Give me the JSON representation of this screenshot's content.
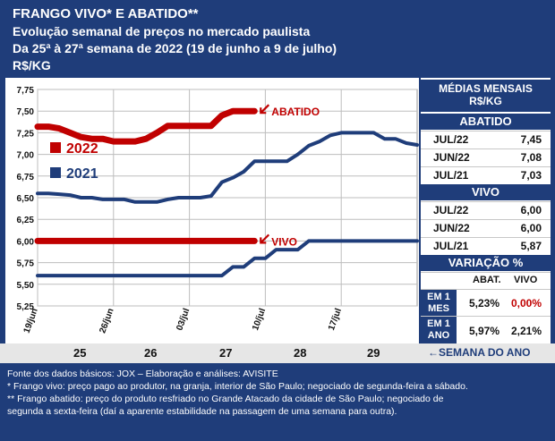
{
  "header": {
    "title": "FRANGO VIVO* E ABATIDO**",
    "line2": "Evolução semanal de preços no mercado paulista",
    "line3": "Da 25ª à 27ª semana de 2022 (19 de junho a 9 de julho)",
    "line4": "R$/KG"
  },
  "chart_data": {
    "type": "line",
    "title": "",
    "xlabel": "",
    "ylabel": "R$/KG",
    "ylim": [
      5.25,
      7.75
    ],
    "yticks": [
      "7,75",
      "7,50",
      "7,25",
      "7,00",
      "6,75",
      "6,50",
      "6,25",
      "6,00",
      "5,75",
      "5,50",
      "5,25"
    ],
    "x_tick_labels": [
      "19/jun",
      "26/jun",
      "03/jul",
      "10/jul",
      "17/jul"
    ],
    "x_tick_days": [
      0,
      7,
      14,
      21,
      28
    ],
    "x_range_days": [
      0,
      35
    ],
    "grid": true,
    "series": [
      {
        "name": "2022",
        "product": "ABATIDO",
        "color": "#c00000",
        "x": [
          0,
          1,
          2,
          3,
          4,
          5,
          6,
          7,
          8,
          9,
          10,
          11,
          12,
          13,
          14,
          15,
          16,
          17,
          18,
          19,
          20
        ],
        "values": [
          7.32,
          7.32,
          7.3,
          7.25,
          7.2,
          7.18,
          7.18,
          7.15,
          7.15,
          7.15,
          7.18,
          7.25,
          7.33,
          7.33,
          7.33,
          7.33,
          7.33,
          7.45,
          7.5,
          7.5,
          7.5
        ]
      },
      {
        "name": "2021",
        "product": "ABATIDO",
        "color": "#1f3d7a",
        "x": [
          0,
          1,
          2,
          3,
          4,
          5,
          6,
          7,
          8,
          9,
          10,
          11,
          12,
          13,
          14,
          15,
          16,
          17,
          18,
          19,
          20,
          21,
          22,
          23,
          24,
          25,
          26,
          27,
          28,
          29,
          30,
          31,
          32,
          33,
          34,
          35
        ],
        "values": [
          6.55,
          6.55,
          6.54,
          6.53,
          6.5,
          6.5,
          6.48,
          6.48,
          6.48,
          6.45,
          6.45,
          6.45,
          6.48,
          6.5,
          6.5,
          6.5,
          6.52,
          6.68,
          6.73,
          6.8,
          6.92,
          6.92,
          6.92,
          6.92,
          7.0,
          7.1,
          7.15,
          7.22,
          7.25,
          7.25,
          7.25,
          7.25,
          7.18,
          7.18,
          7.13,
          7.11
        ]
      },
      {
        "name": "2022",
        "product": "VIVO",
        "color": "#c00000",
        "x": [
          0,
          20
        ],
        "values": [
          6.0,
          6.0
        ]
      },
      {
        "name": "2021",
        "product": "VIVO",
        "color": "#1f3d7a",
        "x": [
          0,
          1,
          2,
          3,
          4,
          5,
          6,
          7,
          8,
          9,
          10,
          11,
          12,
          13,
          14,
          15,
          16,
          17,
          18,
          19,
          20,
          21,
          22,
          23,
          24,
          25,
          26,
          27,
          28,
          29,
          30,
          31,
          32,
          33,
          34,
          35
        ],
        "values": [
          5.6,
          5.6,
          5.6,
          5.6,
          5.6,
          5.6,
          5.6,
          5.6,
          5.6,
          5.6,
          5.6,
          5.6,
          5.6,
          5.6,
          5.6,
          5.6,
          5.6,
          5.6,
          5.7,
          5.7,
          5.8,
          5.8,
          5.9,
          5.9,
          5.9,
          6.0,
          6.0,
          6.0,
          6.0,
          6.0,
          6.0,
          6.0,
          6.0,
          6.0,
          6.0,
          6.0
        ]
      }
    ],
    "legend": [
      {
        "label": "2022",
        "color": "#c00000"
      },
      {
        "label": "2021",
        "color": "#1f3d7a"
      }
    ],
    "annotations": [
      {
        "text": "ABATIDO",
        "x": 20,
        "y": 7.5,
        "color": "#c00000"
      },
      {
        "text": "VIVO",
        "x": 20,
        "y": 6.0,
        "color": "#c00000"
      }
    ]
  },
  "weeks": {
    "labels": [
      "25",
      "26",
      "27",
      "28",
      "29"
    ],
    "caption": "SEMANA DO ANO"
  },
  "panel": {
    "title1": "MÉDIAS MENSAIS",
    "title2": "R$/KG",
    "abatido": {
      "header": "ABATIDO",
      "rows": [
        {
          "label": "JUL/22",
          "value": "7,45"
        },
        {
          "label": "JUN/22",
          "value": "7,08"
        },
        {
          "label": "JUL/21",
          "value": "7,03"
        }
      ]
    },
    "vivo": {
      "header": "VIVO",
      "rows": [
        {
          "label": "JUL/22",
          "value": "6,00"
        },
        {
          "label": "JUN/22",
          "value": "6,00"
        },
        {
          "label": "JUL/21",
          "value": "5,87"
        }
      ]
    },
    "variacao": {
      "header": "VARIAÇÃO %",
      "col1": "ABAT.",
      "col2": "VIVO",
      "rows": [
        {
          "label1": "EM 1",
          "label2": "MES",
          "abat": "5,23%",
          "vivo": "0,00%",
          "vivo_color": "#c00000"
        },
        {
          "label1": "EM 1",
          "label2": "ANO",
          "abat": "5,97%",
          "vivo": "2,21%",
          "vivo_color": "#111111"
        }
      ]
    }
  },
  "notes": {
    "line1": "Fonte dos dados básicos: JOX – Elaboração e análises: AVISITE",
    "line2": "*   Frango vivo: preço pago ao produtor, na granja, interior de São Paulo; negociado de segunda-feira a sábado.",
    "line3": "** Frango abatido: preço do produto resfriado no Grande Atacado da cidade de São Paulo; negociado de",
    "line4": "segunda a sexta-feira (daí a aparente estabilidade na passagem de uma semana para outra)."
  }
}
